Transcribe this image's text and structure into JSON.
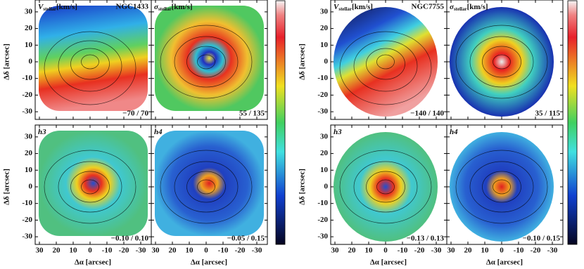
{
  "figures": [
    {
      "y_axis_label": "Δδ [arcsec]",
      "x_axis_label": "Δα [arcsec]",
      "yticks": [
        30,
        20,
        10,
        0,
        -10,
        -20,
        -30
      ],
      "xticks": [
        30,
        20,
        10,
        0,
        -10,
        -20,
        -30
      ],
      "panels": [
        {
          "symbol": "V",
          "subscript": "stellar",
          "unit": "[km/s]",
          "galaxy": "NGC1433",
          "range": "−70 / 70"
        },
        {
          "symbol": "σ",
          "subscript": "stellar",
          "unit": "[km/s]",
          "range": "55 / 135"
        },
        {
          "symbol": "h3",
          "range": "−0.10 / 0.10"
        },
        {
          "symbol": "h4",
          "range": "−0.05 / 0.15"
        }
      ]
    },
    {
      "y_axis_label": "Δδ [arcsec]",
      "x_axis_label": "Δα [arcsec]",
      "yticks": [
        30,
        20,
        10,
        0,
        -10,
        -20,
        -30
      ],
      "xticks": [
        30,
        20,
        10,
        0,
        -10,
        -20,
        -30
      ],
      "panels": [
        {
          "symbol": "V",
          "subscript": "stellar",
          "unit": "[km/s]",
          "galaxy": "NGC7755",
          "range": "−140 / 140"
        },
        {
          "symbol": "σ",
          "subscript": "stellar",
          "unit": "[km/s]",
          "range": "35 / 115"
        },
        {
          "symbol": "h3",
          "range": "−0.13 / 0.13"
        },
        {
          "symbol": "h4",
          "range": "−0.10 / 0.15"
        }
      ]
    }
  ]
}
